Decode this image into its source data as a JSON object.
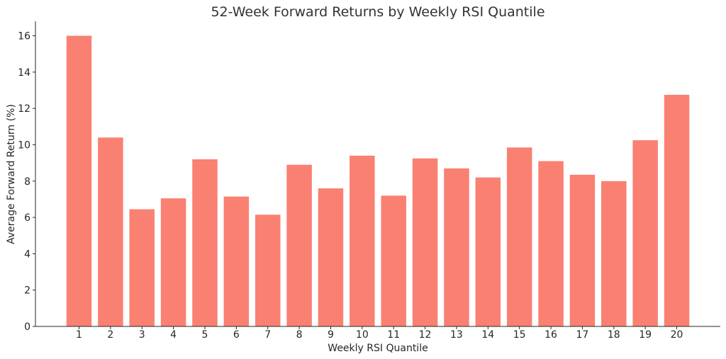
{
  "chart_data": {
    "type": "bar",
    "title": "52-Week Forward Returns by Weekly RSI Quantile",
    "xlabel": "Weekly RSI Quantile",
    "ylabel": "Average Forward Return (%)",
    "categories": [
      "1",
      "2",
      "3",
      "4",
      "5",
      "6",
      "7",
      "8",
      "9",
      "10",
      "11",
      "12",
      "13",
      "14",
      "15",
      "16",
      "17",
      "18",
      "19",
      "20"
    ],
    "values": [
      16.0,
      10.4,
      6.45,
      7.05,
      9.2,
      7.15,
      6.15,
      8.9,
      7.6,
      9.4,
      7.2,
      9.25,
      8.7,
      8.2,
      9.85,
      9.1,
      8.35,
      8.0,
      10.25,
      12.75
    ],
    "ylim": [
      0,
      16.8
    ],
    "yticks": [
      0,
      2,
      4,
      6,
      8,
      10,
      12,
      14,
      16
    ],
    "grid": false,
    "bar_color": "#fa8072"
  }
}
